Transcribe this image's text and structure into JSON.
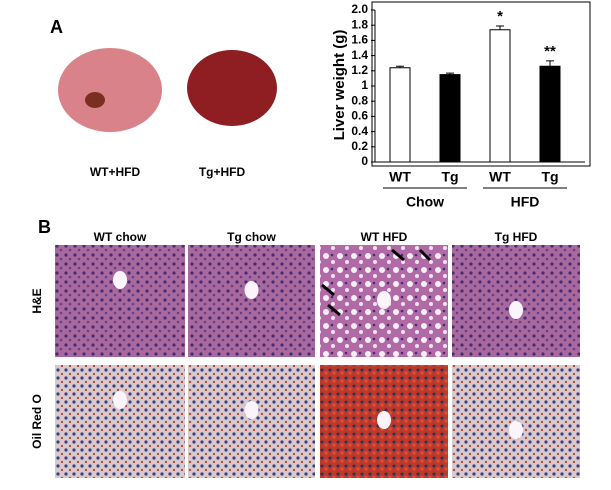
{
  "panel_a": {
    "label": "A",
    "photos": [
      "WT+HFD",
      "Tg+HFD"
    ]
  },
  "panel_b": {
    "label": "B",
    "columns": [
      "WT chow",
      "Tg chow",
      "WT HFD",
      "Tg HFD"
    ],
    "rows": [
      "H&E",
      "Oil Red O"
    ]
  },
  "chart_data": {
    "type": "bar",
    "y_label": "Liver weight (g)",
    "categories": [
      "WT",
      "Tg",
      "WT",
      "Tg"
    ],
    "groups": [
      "Chow",
      "HFD"
    ],
    "values": [
      1.24,
      1.15,
      1.74,
      1.26
    ],
    "errors": [
      0.02,
      0.02,
      0.05,
      0.07
    ],
    "annotations": [
      null,
      null,
      "*",
      "**"
    ],
    "colors": [
      "#ffffff",
      "#000000",
      "#ffffff",
      "#000000"
    ],
    "ylim": [
      0,
      2
    ],
    "yticks": [
      0,
      0.2,
      0.4,
      0.6,
      0.8,
      1,
      1.2,
      1.4,
      1.6,
      1.8,
      {
        "value": 2,
        "label": "2.0"
      }
    ]
  }
}
